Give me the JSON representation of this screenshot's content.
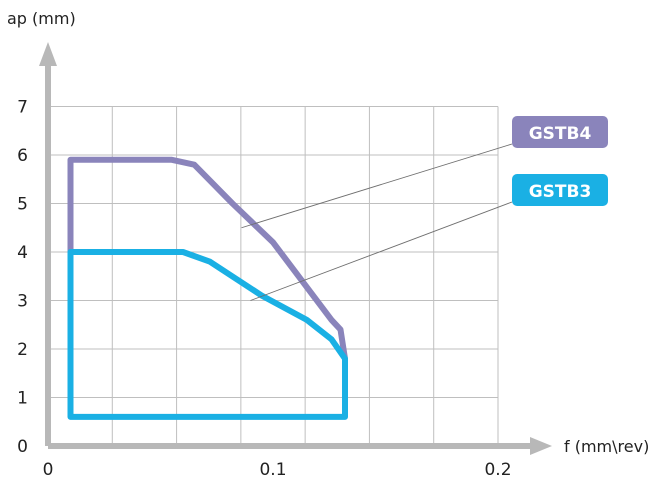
{
  "chart_data": {
    "type": "area",
    "x_axis": {
      "label": "f (mm\\rev)",
      "ticks": [
        {
          "value": 0,
          "label": "0"
        },
        {
          "value": 0.1,
          "label": "0.1"
        },
        {
          "value": 0.2,
          "label": "0.2"
        }
      ],
      "range": [
        0,
        0.2
      ]
    },
    "y_axis": {
      "label": "ap (mm)",
      "ticks": [
        {
          "value": 0,
          "label": "0"
        },
        {
          "value": 1,
          "label": "1"
        },
        {
          "value": 2,
          "label": "2"
        },
        {
          "value": 3,
          "label": "3"
        },
        {
          "value": 4,
          "label": "4"
        },
        {
          "value": 5,
          "label": "5"
        },
        {
          "value": 6,
          "label": "6"
        },
        {
          "value": 7,
          "label": "7"
        }
      ],
      "range": [
        0,
        7
      ]
    },
    "grid": true,
    "series": [
      {
        "name": "GSTB4",
        "color": "#8a84bb",
        "points": [
          [
            0.01,
            3.7
          ],
          [
            0.01,
            5.9
          ],
          [
            0.055,
            5.9
          ],
          [
            0.065,
            5.8
          ],
          [
            0.082,
            5.0
          ],
          [
            0.1,
            4.2
          ],
          [
            0.126,
            2.6
          ],
          [
            0.13,
            2.4
          ],
          [
            0.132,
            1.8
          ]
        ]
      },
      {
        "name": "GSTB3",
        "color": "#1ab0e4",
        "points": [
          [
            0.01,
            0.6
          ],
          [
            0.01,
            4.0
          ],
          [
            0.06,
            4.0
          ],
          [
            0.072,
            3.8
          ],
          [
            0.095,
            3.1
          ],
          [
            0.115,
            2.6
          ],
          [
            0.126,
            2.2
          ],
          [
            0.132,
            1.8
          ],
          [
            0.132,
            0.6
          ]
        ]
      }
    ],
    "annotations": [
      {
        "text": "GSTB4",
        "color": "#8a84bb",
        "point": [
          0.086,
          4.5
        ]
      },
      {
        "text": "GSTB3",
        "color": "#1ab0e4",
        "point": [
          0.09,
          3.0
        ]
      }
    ]
  }
}
